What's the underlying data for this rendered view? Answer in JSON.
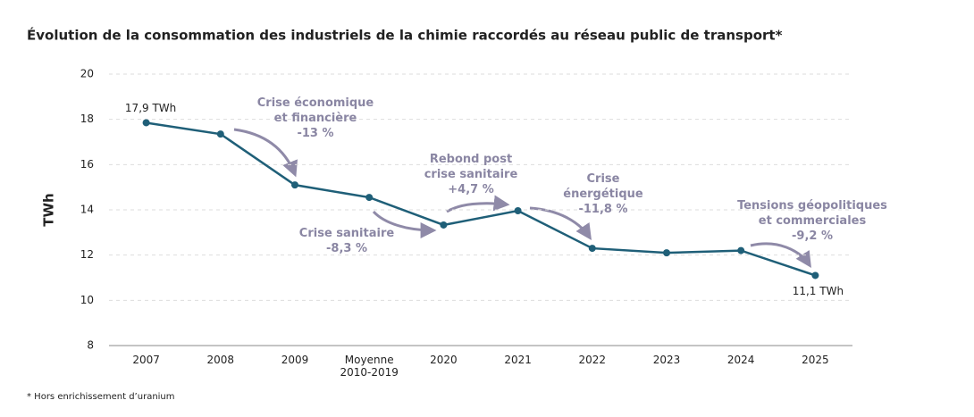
{
  "chart_data": {
    "type": "line",
    "title": "Évolution de la consommation des industriels de la chimie raccordés au réseau public de transport*",
    "y_label": "TWh",
    "categories": [
      "2007",
      "2008",
      "2009",
      "Moyenne 2010-2019",
      "2020",
      "2021",
      "2022",
      "2023",
      "2024",
      "2025"
    ],
    "values": [
      17.85,
      17.35,
      15.1,
      14.55,
      13.33,
      13.96,
      12.3,
      12.1,
      12.2,
      11.1
    ],
    "value_labels": [
      "17,9 TWh",
      null,
      null,
      null,
      null,
      null,
      null,
      null,
      null,
      "11,1 TWh"
    ],
    "color": "#1f5f78",
    "ylim": [
      8,
      20
    ],
    "yticks": [
      8,
      10,
      12,
      14,
      16,
      18,
      20
    ],
    "grid": true,
    "annotations": [
      "Crise économique\net financière\n-13 %",
      "Crise sanitaire\n-8,3 %",
      "Rebond post\ncrise sanitaire\n+4,7 %",
      "Crise\nénergétique\n-11,8 %",
      "Tensions géopolitiques\net commerciales\n-9,2 %"
    ],
    "footnote": "* Hors enrichissement d’uranium"
  }
}
